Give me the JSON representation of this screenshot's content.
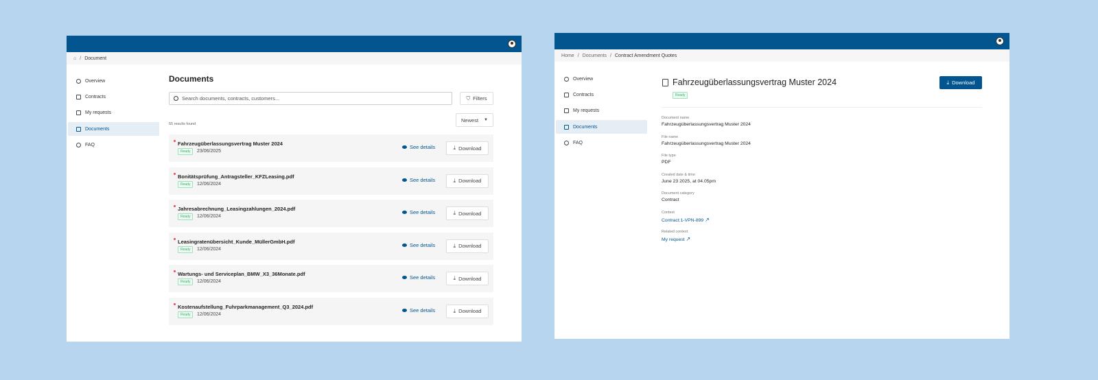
{
  "sidebar": {
    "items": [
      {
        "label": "Overview",
        "icon": "pie-chart-icon"
      },
      {
        "label": "Contracts",
        "icon": "contract-icon"
      },
      {
        "label": "My requests",
        "icon": "requests-icon"
      },
      {
        "label": "Documents",
        "icon": "folder-icon",
        "active": true
      },
      {
        "label": "FAQ",
        "icon": "help-circle-icon"
      }
    ]
  },
  "list_view": {
    "breadcrumb": {
      "current": "Document"
    },
    "title": "Documents",
    "search_placeholder": "Search documents, contracts, customers...",
    "filters_label": "Filters",
    "sort_label": "Newest",
    "results": "55 results found",
    "see_details": "See details",
    "download": "Download",
    "rows": [
      {
        "name": "Fahrzeugüberlassungsvertrag Muster 2024",
        "status": "Ready",
        "date": "23/06/2025"
      },
      {
        "name": "Bonitätsprüfung_Antragsteller_KFZLeasing.pdf",
        "status": "Ready",
        "date": "12/06/2024"
      },
      {
        "name": "Jahresabrechnung_Leasingzahlungen_2024.pdf",
        "status": "Ready",
        "date": "12/06/2024"
      },
      {
        "name": "Leasingratenübersicht_Kunde_MüllerGmbH.pdf",
        "status": "Ready",
        "date": "12/06/2024"
      },
      {
        "name": "Wartungs- und Serviceplan_BMW_X3_36Monate.pdf",
        "status": "Ready",
        "date": "12/06/2024"
      },
      {
        "name": "Kostenaufstellung_Fuhrparkmanagement_Q3_2024.pdf",
        "status": "Ready",
        "date": "12/06/2024"
      }
    ]
  },
  "detail_view": {
    "breadcrumb": [
      "Home",
      "Documents",
      "Contract Amendment Quotes"
    ],
    "title": "Fahrzeugüberlassungsvertrag Muster 2024",
    "status": "Ready",
    "download": "Download",
    "fields": [
      {
        "label": "Document name",
        "value": "Fahrzeugüberlassungsvertrag Muster 2024"
      },
      {
        "label": "File name",
        "value": "Fahrzeugüberlassungsvertrag Muster 2024"
      },
      {
        "label": "File type",
        "value": "PDF"
      },
      {
        "label": "Created date & time",
        "value": "June 23 2025, at 04.05pm"
      },
      {
        "label": "Document category",
        "value": "Contract"
      },
      {
        "label": "Context",
        "value": "Contract:1-VPN-899",
        "link": true
      },
      {
        "label": "Related context",
        "value": "My request",
        "link": true
      }
    ]
  },
  "colors": {
    "brand": "#02558e",
    "ready": "#2fb36a",
    "required_dot": "#e94a5b"
  }
}
